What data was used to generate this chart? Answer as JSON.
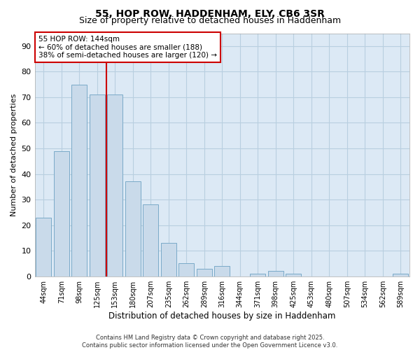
{
  "title1": "55, HOP ROW, HADDENHAM, ELY, CB6 3SR",
  "title2": "Size of property relative to detached houses in Haddenham",
  "xlabel": "Distribution of detached houses by size in Haddenham",
  "ylabel": "Number of detached properties",
  "categories": [
    "44sqm",
    "71sqm",
    "98sqm",
    "125sqm",
    "153sqm",
    "180sqm",
    "207sqm",
    "235sqm",
    "262sqm",
    "289sqm",
    "316sqm",
    "344sqm",
    "371sqm",
    "398sqm",
    "425sqm",
    "453sqm",
    "480sqm",
    "507sqm",
    "534sqm",
    "562sqm",
    "589sqm"
  ],
  "values": [
    23,
    49,
    75,
    71,
    71,
    37,
    28,
    13,
    5,
    3,
    4,
    0,
    1,
    2,
    1,
    0,
    0,
    0,
    0,
    0,
    1
  ],
  "bar_color": "#c9daea",
  "bar_edge_color": "#7aaac8",
  "vline_color": "#cc0000",
  "annotation_text": "55 HOP ROW: 144sqm\n← 60% of detached houses are smaller (188)\n38% of semi-detached houses are larger (120) →",
  "annotation_box_color": "#cc0000",
  "ylim": [
    0,
    95
  ],
  "yticks": [
    0,
    10,
    20,
    30,
    40,
    50,
    60,
    70,
    80,
    90
  ],
  "grid_color": "#b8cfe0",
  "bg_color": "#dce9f5",
  "footer": "Contains HM Land Registry data © Crown copyright and database right 2025.\nContains public sector information licensed under the Open Government Licence v3.0.",
  "title_fontsize": 10,
  "subtitle_fontsize": 9,
  "footer_fontsize": 6
}
